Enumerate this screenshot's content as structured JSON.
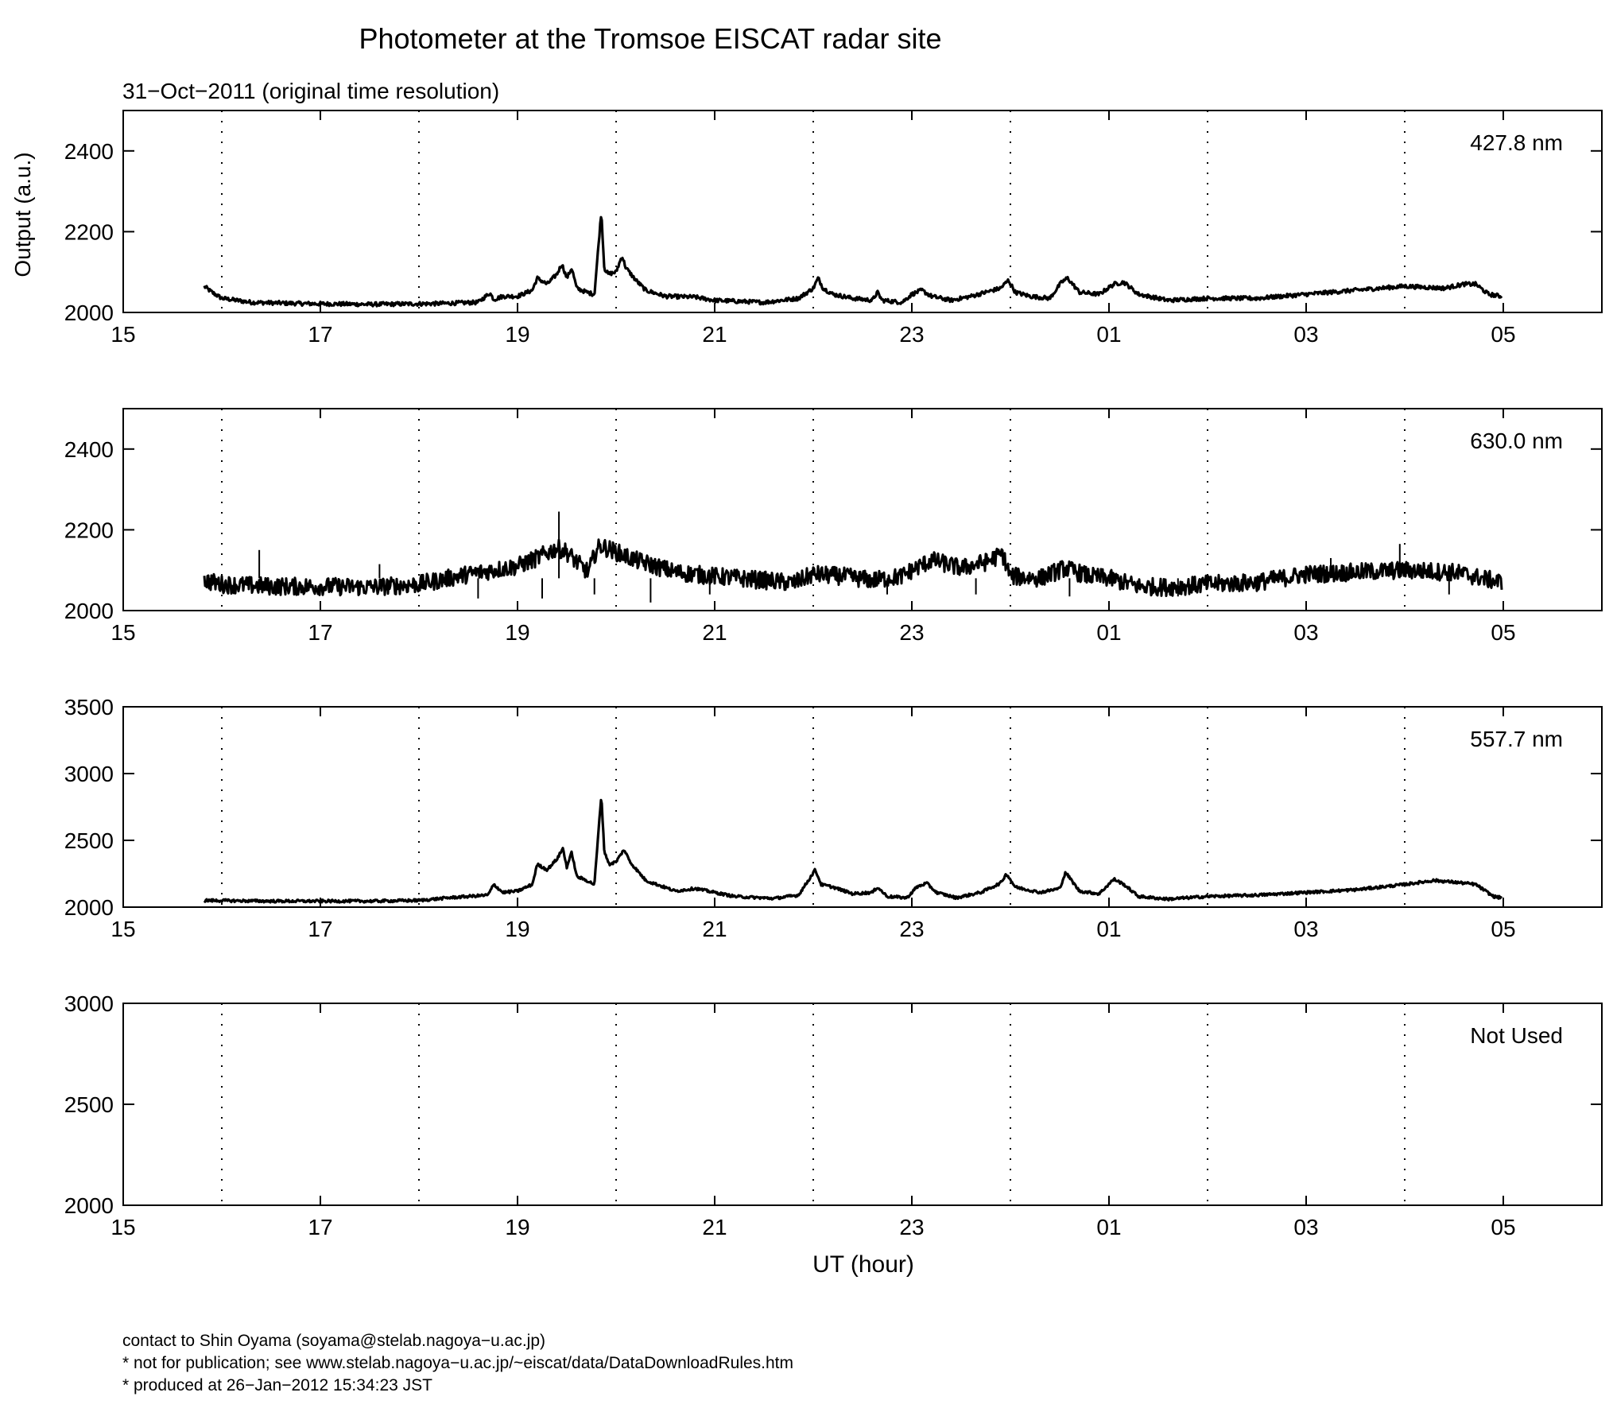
{
  "figure": {
    "title": "Photometer at the Tromsoe EISCAT radar site",
    "subtitle": "31−Oct−2011 (original time resolution)",
    "ylabel": "Output (a.u.)",
    "xlabel": "UT (hour)"
  },
  "footer": {
    "contact": "contact to Shin Oyama (soyama@stelab.nagoya−u.ac.jp)",
    "notice": "* not for publication; see www.stelab.nagoya−u.ac.jp/~eiscat/data/DataDownloadRules.htm",
    "produced": "* produced at 26−Jan−2012 15:34:23 JST"
  },
  "chart_data": [
    {
      "type": "line",
      "label": "427.8 nm",
      "x_ticks": [
        "15",
        "17",
        "19",
        "21",
        "23",
        "01",
        "03",
        "05"
      ],
      "xlim": [
        15,
        30
      ],
      "x_unit": "UT hour (values above 24 continue into the next day)",
      "dotted_grid_hours": [
        16,
        18,
        20,
        22,
        24,
        26,
        28
      ],
      "ylim": [
        2000,
        2500
      ],
      "y_ticks": [
        2000,
        2200,
        2400
      ],
      "noise": 5,
      "x": [
        15.82,
        15.9,
        16.0,
        16.3,
        16.8,
        17.5,
        18.2,
        18.6,
        18.72,
        18.76,
        18.85,
        19.0,
        19.15,
        19.2,
        19.3,
        19.4,
        19.45,
        19.5,
        19.55,
        19.6,
        19.7,
        19.78,
        19.85,
        19.88,
        19.92,
        20.0,
        20.06,
        20.1,
        20.2,
        20.3,
        20.5,
        20.8,
        21.0,
        21.5,
        21.85,
        22.0,
        22.05,
        22.1,
        22.2,
        22.4,
        22.6,
        22.65,
        22.7,
        22.9,
        23.0,
        23.1,
        23.2,
        23.4,
        23.6,
        23.9,
        23.98,
        24.05,
        24.2,
        24.4,
        24.52,
        24.58,
        24.7,
        24.9,
        25.05,
        25.15,
        25.3,
        25.6,
        26.0,
        26.5,
        27.0,
        27.5,
        28.0,
        28.4,
        28.6,
        28.72,
        28.85,
        28.98
      ],
      "values": [
        2065,
        2050,
        2035,
        2025,
        2022,
        2020,
        2022,
        2025,
        2048,
        2032,
        2040,
        2040,
        2055,
        2085,
        2070,
        2095,
        2120,
        2085,
        2110,
        2060,
        2050,
        2045,
        2250,
        2110,
        2095,
        2100,
        2140,
        2110,
        2080,
        2055,
        2040,
        2038,
        2030,
        2025,
        2035,
        2060,
        2085,
        2060,
        2045,
        2035,
        2030,
        2050,
        2030,
        2025,
        2045,
        2055,
        2040,
        2030,
        2040,
        2060,
        2080,
        2050,
        2040,
        2035,
        2075,
        2085,
        2050,
        2045,
        2070,
        2075,
        2045,
        2030,
        2035,
        2035,
        2045,
        2055,
        2065,
        2060,
        2070,
        2070,
        2045,
        2040
      ]
    },
    {
      "type": "line",
      "label": "630.0 nm",
      "x_ticks": [
        "15",
        "17",
        "19",
        "21",
        "23",
        "01",
        "03",
        "05"
      ],
      "xlim": [
        15,
        30
      ],
      "dotted_grid_hours": [
        16,
        18,
        20,
        22,
        24,
        26,
        28
      ],
      "ylim": [
        2000,
        2500
      ],
      "y_ticks": [
        2000,
        2200,
        2400
      ],
      "noise": 22,
      "x": [
        15.82,
        16.0,
        16.5,
        17.0,
        17.5,
        18.0,
        18.5,
        19.0,
        19.2,
        19.4,
        19.5,
        19.62,
        19.72,
        19.8,
        19.85,
        20.0,
        20.2,
        20.4,
        20.6,
        21.0,
        21.5,
        21.8,
        22.0,
        22.3,
        22.6,
        22.9,
        23.0,
        23.2,
        23.5,
        23.75,
        23.92,
        24.0,
        24.3,
        24.55,
        24.8,
        25.0,
        25.3,
        25.6,
        26.0,
        26.5,
        27.0,
        27.5,
        28.0,
        28.5,
        28.98
      ],
      "values": [
        2075,
        2065,
        2060,
        2060,
        2058,
        2065,
        2090,
        2110,
        2130,
        2155,
        2145,
        2115,
        2095,
        2150,
        2160,
        2145,
        2125,
        2110,
        2095,
        2085,
        2075,
        2068,
        2090,
        2085,
        2075,
        2085,
        2100,
        2125,
        2105,
        2120,
        2140,
        2085,
        2080,
        2105,
        2085,
        2080,
        2060,
        2058,
        2065,
        2070,
        2090,
        2095,
        2100,
        2095,
        2070
      ],
      "spikes": [
        [
          16.38,
          2150
        ],
        [
          17.6,
          2115
        ],
        [
          18.6,
          2030
        ],
        [
          19.25,
          2030
        ],
        [
          19.42,
          2245
        ],
        [
          19.78,
          2040
        ],
        [
          20.35,
          2020
        ],
        [
          20.95,
          2040
        ],
        [
          22.75,
          2040
        ],
        [
          23.65,
          2040
        ],
        [
          24.6,
          2035
        ],
        [
          25.7,
          2035
        ],
        [
          27.25,
          2130
        ],
        [
          27.95,
          2165
        ],
        [
          28.45,
          2040
        ]
      ]
    },
    {
      "type": "line",
      "label": "557.7 nm",
      "x_ticks": [
        "15",
        "17",
        "19",
        "21",
        "23",
        "01",
        "03",
        "05"
      ],
      "xlim": [
        15,
        30
      ],
      "dotted_grid_hours": [
        16,
        18,
        20,
        22,
        24,
        26,
        28
      ],
      "ylim": [
        2000,
        3500
      ],
      "y_ticks": [
        2000,
        2500,
        3000,
        3500
      ],
      "noise": 10,
      "x": [
        15.82,
        16.5,
        17.5,
        18.0,
        18.3,
        18.7,
        18.76,
        18.85,
        19.0,
        19.15,
        19.2,
        19.3,
        19.4,
        19.46,
        19.5,
        19.55,
        19.6,
        19.7,
        19.78,
        19.85,
        19.88,
        19.93,
        20.0,
        20.08,
        20.15,
        20.3,
        20.6,
        20.8,
        21.2,
        21.6,
        21.85,
        21.95,
        22.02,
        22.08,
        22.2,
        22.4,
        22.6,
        22.65,
        22.75,
        22.95,
        23.05,
        23.15,
        23.25,
        23.45,
        23.7,
        23.9,
        23.96,
        24.05,
        24.3,
        24.5,
        24.56,
        24.7,
        24.9,
        25.05,
        25.15,
        25.3,
        25.6,
        26.0,
        26.5,
        27.0,
        27.5,
        28.0,
        28.3,
        28.6,
        28.72,
        28.9,
        28.98
      ],
      "values": [
        2050,
        2045,
        2045,
        2050,
        2070,
        2090,
        2170,
        2110,
        2120,
        2170,
        2320,
        2280,
        2360,
        2440,
        2300,
        2410,
        2230,
        2200,
        2170,
        2840,
        2420,
        2320,
        2340,
        2430,
        2330,
        2200,
        2120,
        2140,
        2080,
        2065,
        2090,
        2200,
        2280,
        2170,
        2150,
        2100,
        2110,
        2150,
        2080,
        2070,
        2150,
        2180,
        2110,
        2070,
        2110,
        2180,
        2250,
        2150,
        2110,
        2140,
        2260,
        2120,
        2100,
        2210,
        2170,
        2080,
        2060,
        2080,
        2090,
        2110,
        2130,
        2170,
        2200,
        2180,
        2170,
        2080,
        2070
      ]
    },
    {
      "type": "line",
      "label": "Not Used",
      "x_ticks": [
        "15",
        "17",
        "19",
        "21",
        "23",
        "01",
        "03",
        "05"
      ],
      "xlim": [
        15,
        30
      ],
      "dotted_grid_hours": [
        16,
        18,
        20,
        22,
        24,
        26,
        28
      ],
      "ylim": [
        2000,
        3000
      ],
      "y_ticks": [
        2000,
        2500,
        3000
      ],
      "x": [],
      "values": []
    }
  ]
}
